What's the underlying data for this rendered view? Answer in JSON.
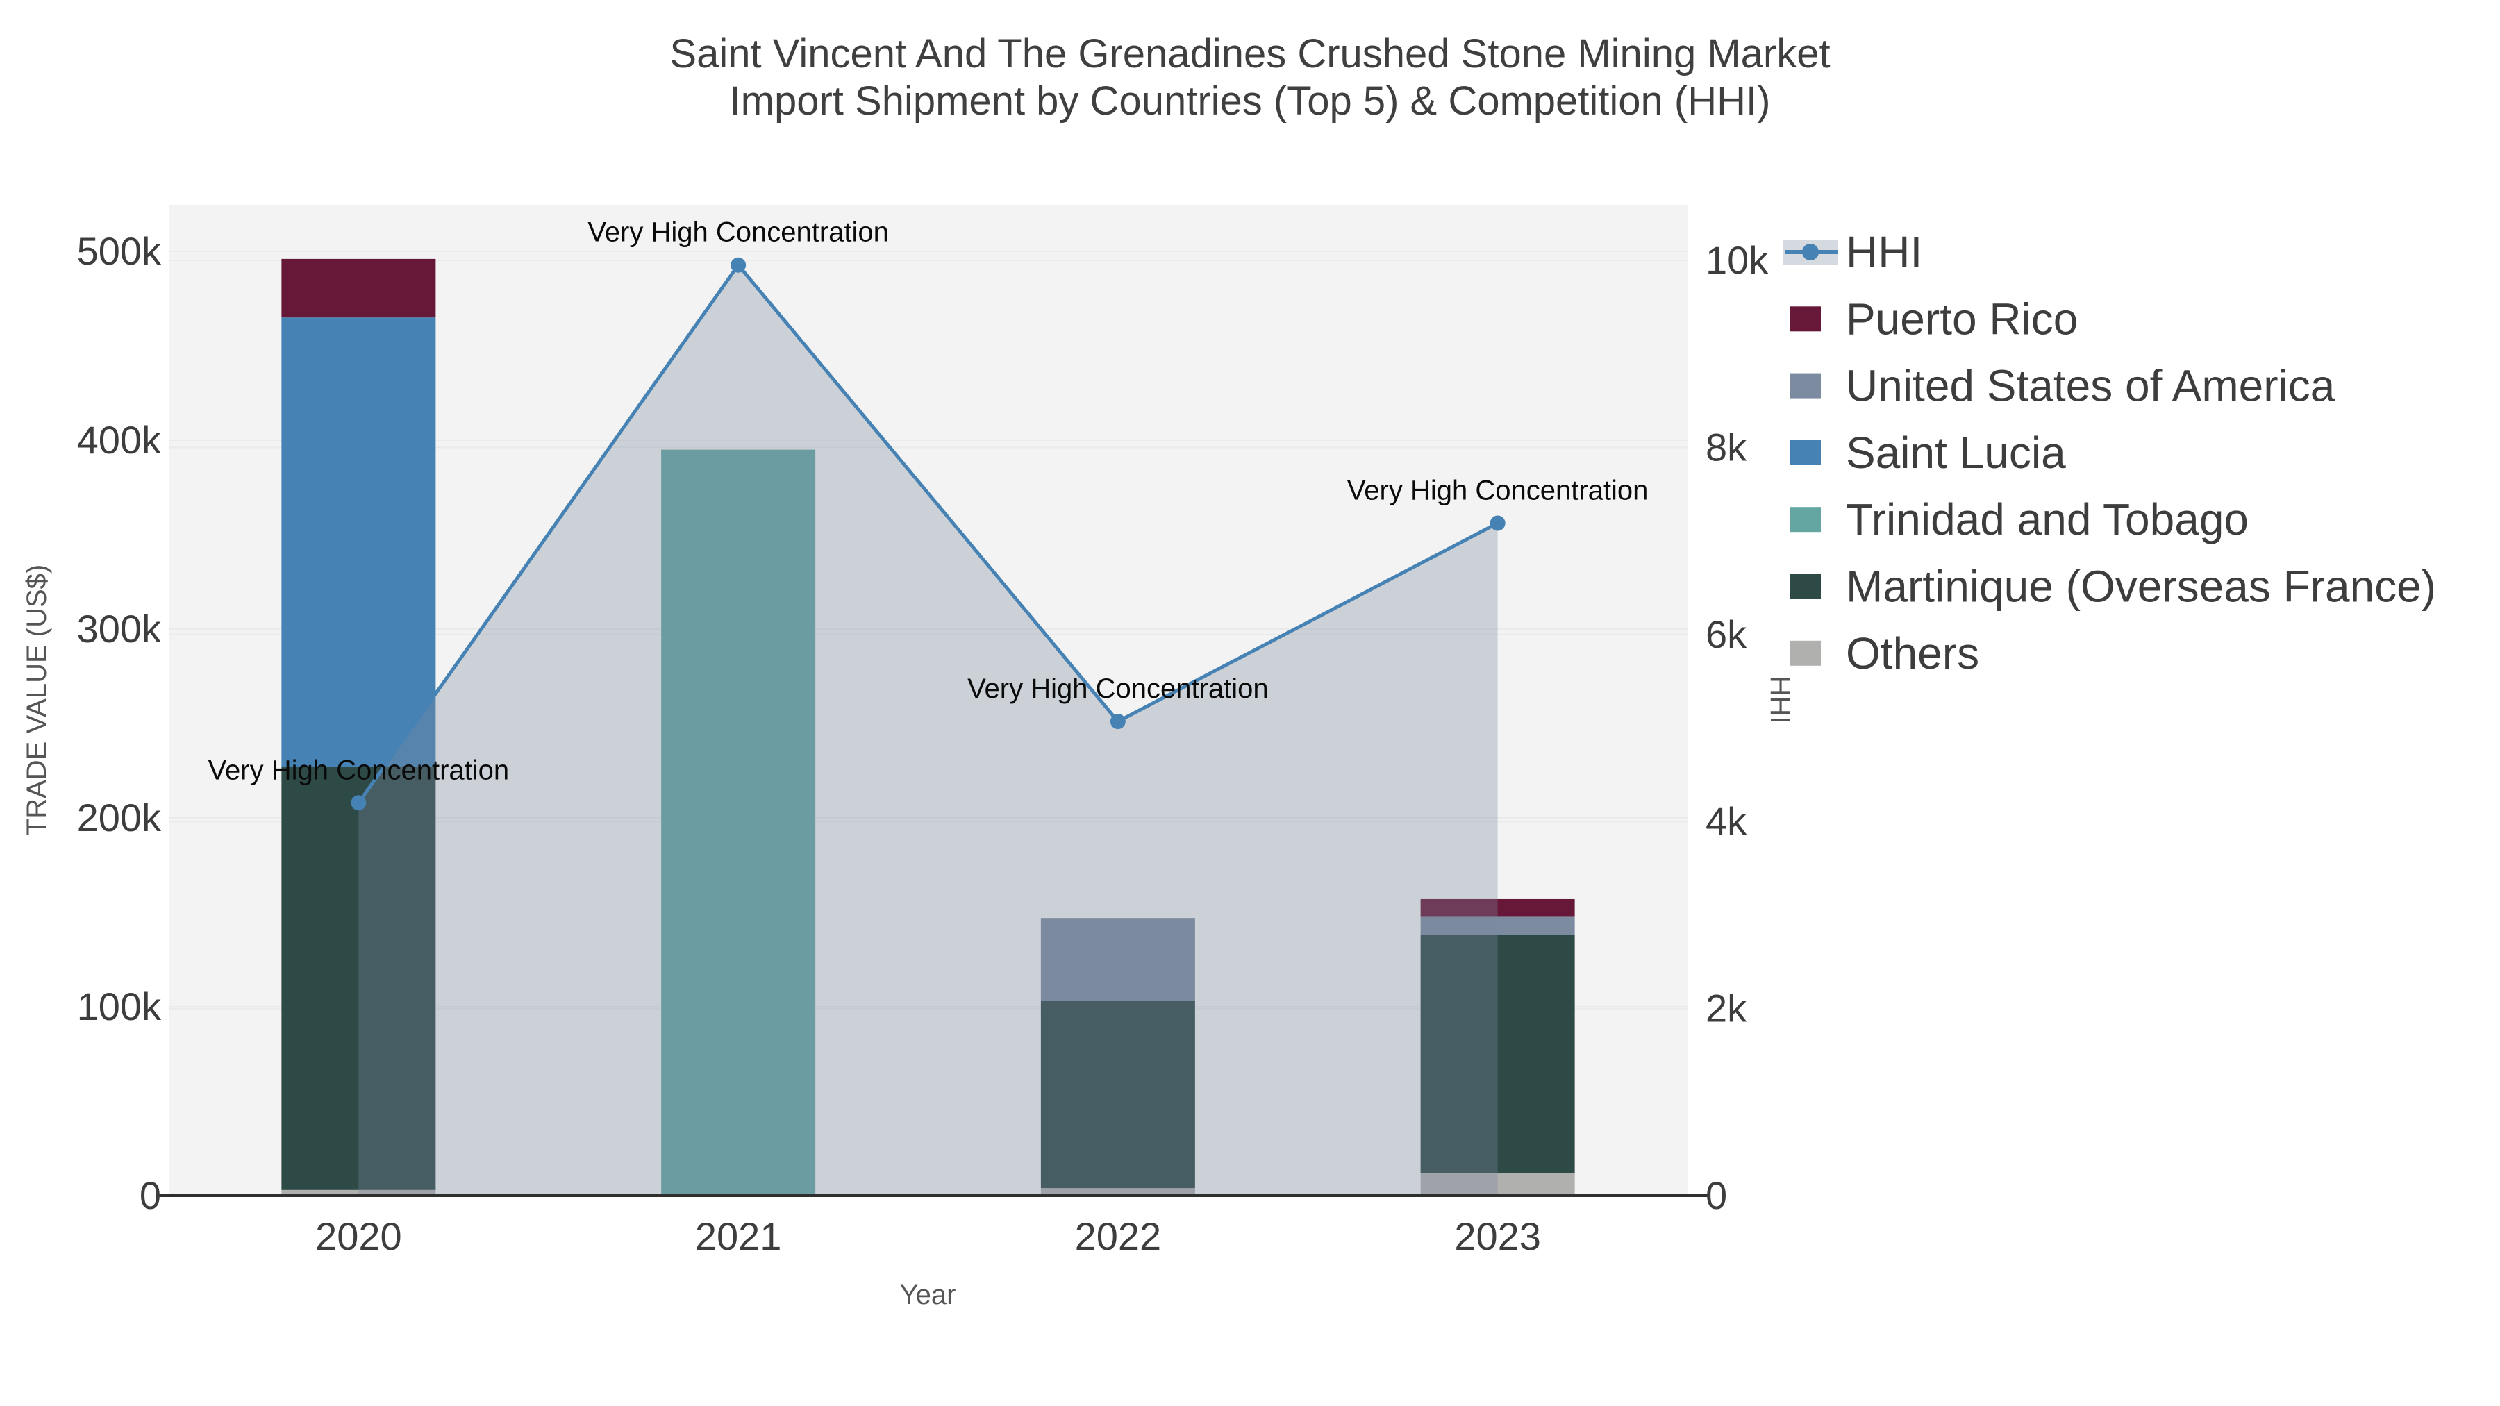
{
  "title": {
    "line1": "Saint Vincent And The Grenadines Crushed Stone Mining Market",
    "line2": "Import Shipment by Countries (Top 5) & Competition (HHI)"
  },
  "chart_data": {
    "type": "bar+line",
    "subtype": "stacked-bars-with-secondary-axis-line-area",
    "categories": [
      "2020",
      "2021",
      "2022",
      "2023"
    ],
    "xlabel": "Year",
    "y_left": {
      "label": "TRADE VALUE (US$)",
      "ticks": [
        "0",
        "100k",
        "200k",
        "300k",
        "400k",
        "500k"
      ],
      "tick_values": [
        0,
        100000,
        200000,
        300000,
        400000,
        500000
      ],
      "max": 500000
    },
    "y_right": {
      "label": "HHI",
      "ticks": [
        "0",
        "2k",
        "4k",
        "6k",
        "8k",
        "10k"
      ],
      "tick_values": [
        0,
        2000,
        4000,
        6000,
        8000,
        10000
      ],
      "max": 10000
    },
    "bar_series_bottom_to_top": [
      {
        "name": "Others",
        "color": "#b0b0af",
        "values": [
          3000,
          0,
          4000,
          12000
        ]
      },
      {
        "name": "Martinique (Overseas France)",
        "color": "#2d4a47",
        "values": [
          224000,
          0,
          99000,
          126000
        ]
      },
      {
        "name": "Trinidad and Tobago",
        "color": "#63a6a2",
        "values": [
          0,
          395000,
          0,
          0
        ]
      },
      {
        "name": "Saint Lucia",
        "color": "#4682b4",
        "values": [
          238000,
          0,
          0,
          0
        ]
      },
      {
        "name": "United States of America",
        "color": "#7d8ba0",
        "values": [
          0,
          0,
          44000,
          10000
        ]
      },
      {
        "name": "Puerto Rico",
        "color": "#671839",
        "values": [
          31000,
          0,
          0,
          9000
        ]
      }
    ],
    "line_series": {
      "name": "HHI",
      "color": "#4682b4",
      "area_fill": "rgba(125,138,160,0.32)",
      "values": [
        4200,
        9950,
        5070,
        7190
      ]
    },
    "annotations": [
      "Very High Concentration",
      "Very High Concentration",
      "Very High Concentration",
      "Very High Concentration"
    ],
    "grid": true,
    "legend_position": "right"
  },
  "legend": {
    "items": [
      {
        "label": "HHI",
        "type": "line",
        "color": "#4682b4"
      },
      {
        "label": "Puerto Rico",
        "type": "swatch",
        "color": "#671839"
      },
      {
        "label": "United States of America",
        "type": "swatch",
        "color": "#7d8ba0"
      },
      {
        "label": "Saint Lucia",
        "type": "swatch",
        "color": "#4682b4"
      },
      {
        "label": "Trinidad and Tobago",
        "type": "swatch",
        "color": "#63a6a2"
      },
      {
        "label": "Martinique (Overseas France)",
        "type": "swatch",
        "color": "#2d4a47"
      },
      {
        "label": "Others",
        "type": "swatch",
        "color": "#b0b0af"
      }
    ]
  }
}
